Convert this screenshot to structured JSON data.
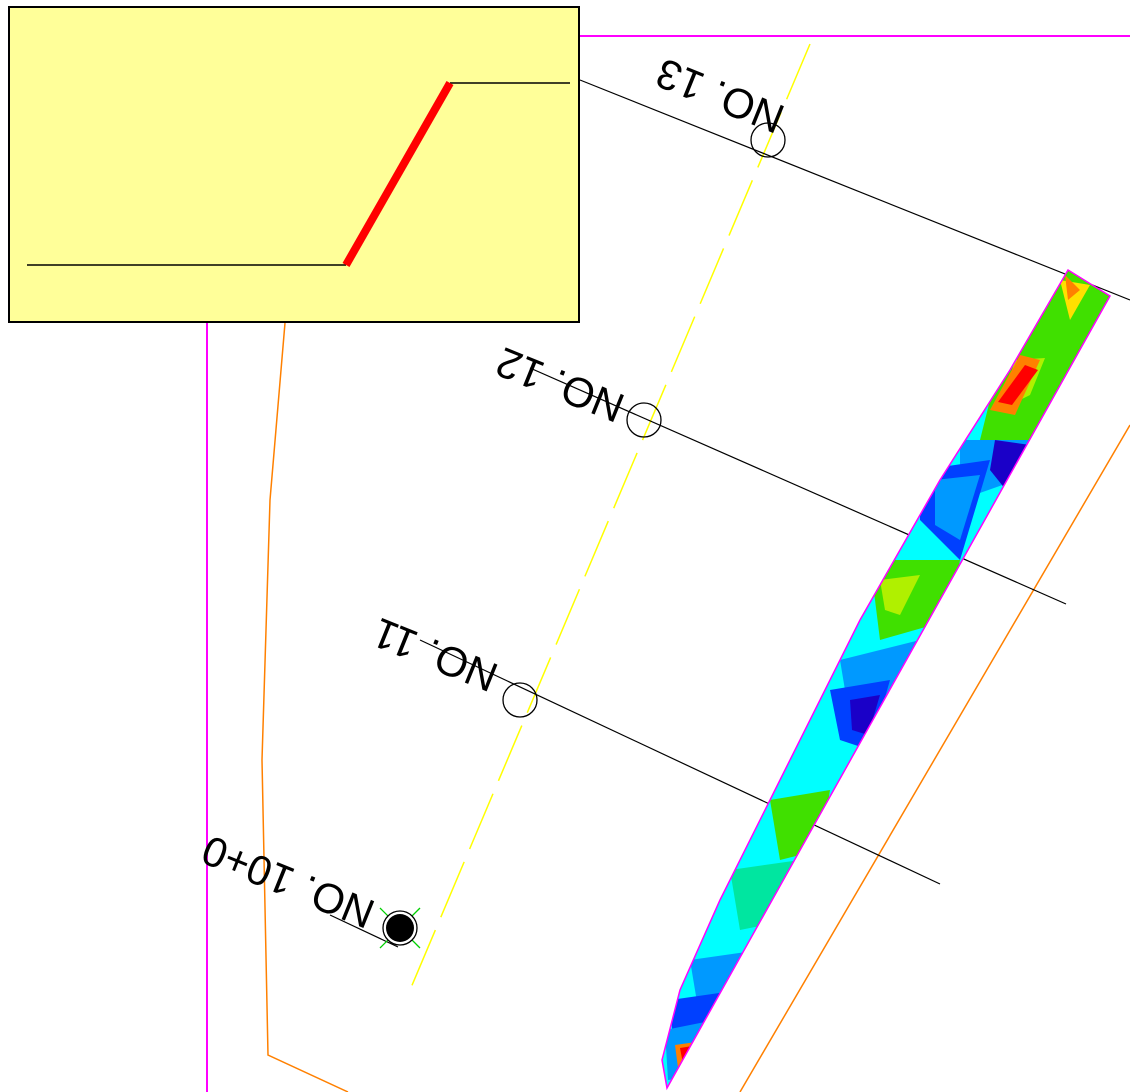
{
  "stations": [
    {
      "id": "station-10",
      "label": "NO. 10+0"
    },
    {
      "id": "station-11",
      "label": "NO. 11"
    },
    {
      "id": "station-12",
      "label": "NO. 12"
    },
    {
      "id": "station-13",
      "label": "NO. 13"
    }
  ],
  "colors": {
    "boundary": "#ff00ff",
    "road_edge": "#ff8000",
    "centerline": "#ffff00",
    "section_line": "#000000",
    "slope_highlight": "#ff0000",
    "panel_background": "#ffff99"
  },
  "heatmap_palette": [
    "#1a00c8",
    "#0040ff",
    "#0099ff",
    "#00ffff",
    "#00e6a0",
    "#40e000",
    "#b0f000",
    "#ffe000",
    "#ff8000",
    "#ff0000"
  ],
  "icons": {
    "station_marker": "circle-outline-icon",
    "start_marker": "filled-circle-icon"
  }
}
